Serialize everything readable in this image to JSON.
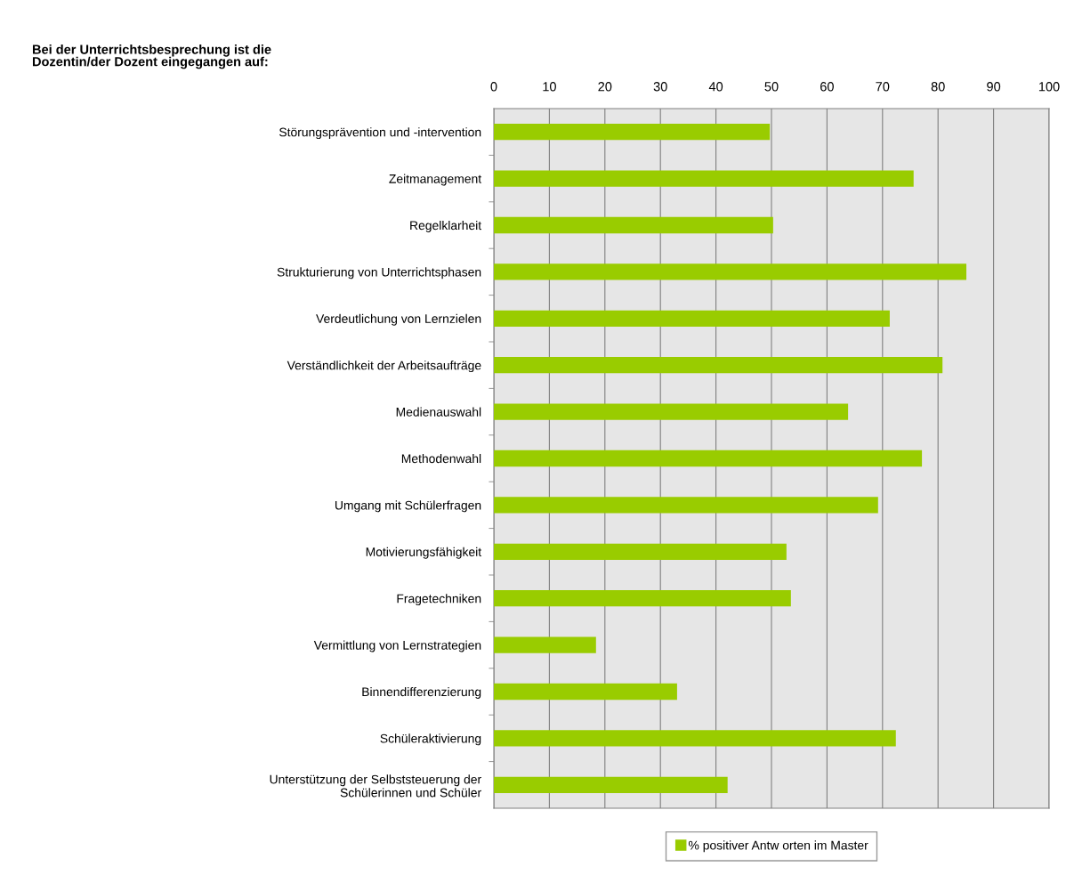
{
  "chart_data": {
    "type": "bar",
    "orientation": "horizontal",
    "title": "Bei der Unterrichtsbesprechung ist die\nDozentin/der Dozent eingegangen auf:",
    "categories": [
      "Störungsprävention und -intervention",
      "Zeitmanagement",
      "Regelklarheit",
      "Strukturierung von Unterrichtsphasen",
      "Verdeutlichung von Lernzielen",
      "Verständlichkeit der Arbeitsaufträge",
      "Medienauswahl",
      "Methodenwahl",
      "Umgang mit Schülerfragen",
      "Motivierungsfähigkeit",
      "Fragetechniken",
      "Vermittlung von Lernstrategien",
      "Binnendifferenzierung",
      "Schüleraktivierung",
      "Unterstützung der Selbststeuerung der\nSchülerinnen und Schüler"
    ],
    "series": [
      {
        "name": "% positiver Antw orten im Master",
        "color": "#99cc00",
        "values": [
          49.7,
          75.6,
          50.3,
          85.1,
          71.3,
          80.8,
          63.8,
          77.1,
          69.2,
          52.7,
          53.5,
          18.4,
          33.0,
          72.4,
          42.1
        ]
      }
    ],
    "xlim": [
      0,
      100
    ],
    "xticks": [
      0,
      10,
      20,
      30,
      40,
      50,
      60,
      70,
      80,
      90,
      100
    ],
    "grid": "x",
    "legend": "bottom"
  }
}
